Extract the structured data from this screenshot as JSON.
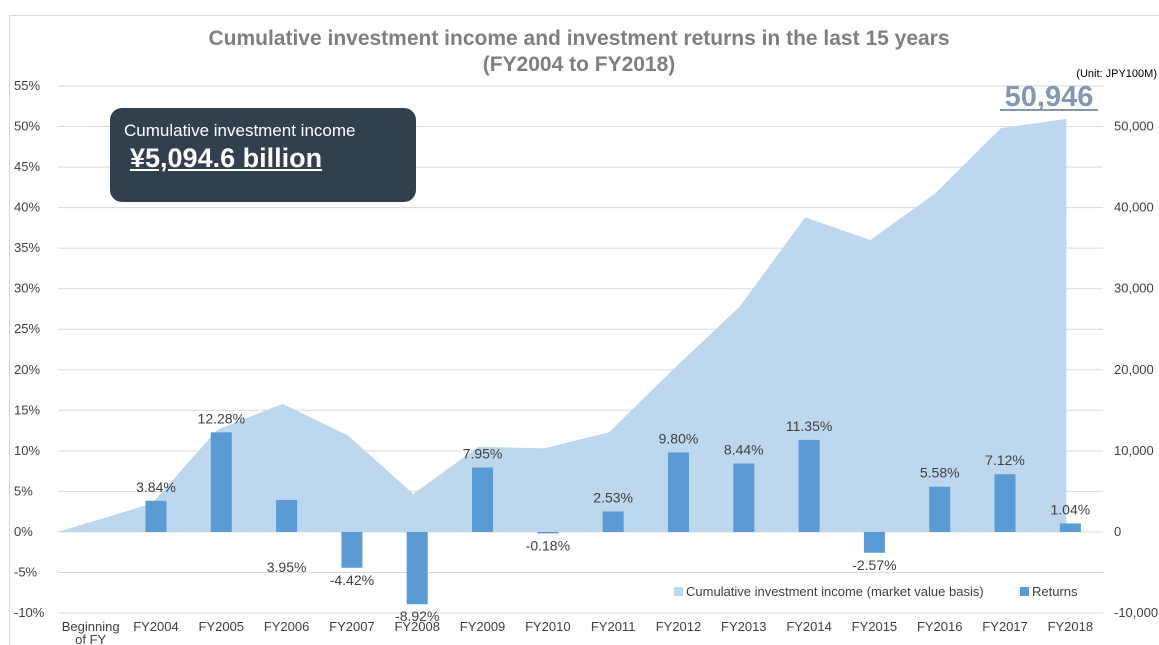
{
  "chart_data": {
    "type": "bar",
    "title": [
      "Cumulative investment income and investment returns in the last 15 years",
      "(FY2004 to FY2018)"
    ],
    "unit": "(Unit: JPY100M)",
    "categories": [
      "Beginning of FY",
      "FY2004",
      "FY2005",
      "FY2006",
      "FY2007",
      "FY2008",
      "FY2009",
      "FY2010",
      "FY2011",
      "FY2012",
      "FY2013",
      "FY2014",
      "FY2015",
      "FY2016",
      "FY2017",
      "FY2018"
    ],
    "series": [
      {
        "name": "Returns",
        "kind": "bar",
        "axis": "left",
        "color": "#5b9bd5",
        "values": [
          null,
          3.84,
          12.28,
          3.95,
          -4.42,
          -8.92,
          7.95,
          -0.18,
          2.53,
          9.8,
          8.44,
          11.35,
          -2.57,
          5.58,
          7.12,
          1.04
        ],
        "labels": [
          "",
          "3.84%",
          "12.28%",
          "3.95%",
          "-4.42%",
          "-8.92%",
          "7.95%",
          "-0.18%",
          "2.53%",
          "9.80%",
          "8.44%",
          "11.35%",
          "-2.57%",
          "5.58%",
          "7.12%",
          "1.04%"
        ]
      },
      {
        "name": "Cumulative investment income (market value basis)",
        "kind": "area",
        "axis": "right",
        "color": "#bdd7ee",
        "values": [
          0,
          3500,
          12600,
          15800,
          11900,
          4700,
          10500,
          10300,
          12300,
          20200,
          27800,
          38800,
          36000,
          41800,
          49800,
          50946
        ]
      }
    ],
    "y_left": {
      "min": -10,
      "max": 55,
      "ticks": [
        -10,
        -5,
        0,
        5,
        10,
        15,
        20,
        25,
        30,
        35,
        40,
        45,
        50,
        55
      ],
      "tick_labels": [
        "-10%",
        "-5%",
        "0%",
        "5%",
        "10%",
        "15%",
        "20%",
        "25%",
        "30%",
        "35%",
        "40%",
        "45%",
        "50%",
        "55%"
      ]
    },
    "y_right": {
      "min": -10000,
      "max": 55000,
      "ticks": [
        -10000,
        0,
        10000,
        20000,
        30000,
        40000,
        50000
      ],
      "tick_labels": [
        "-10,000",
        "0",
        "10,000",
        "20,000",
        "30,000",
        "40,000",
        "50,000"
      ]
    },
    "grid": true,
    "legend_position": "bottom-right",
    "highlight_value": "50,946",
    "callout": {
      "label": "Cumulative investment income",
      "value": "¥5,094.6 billion"
    }
  }
}
